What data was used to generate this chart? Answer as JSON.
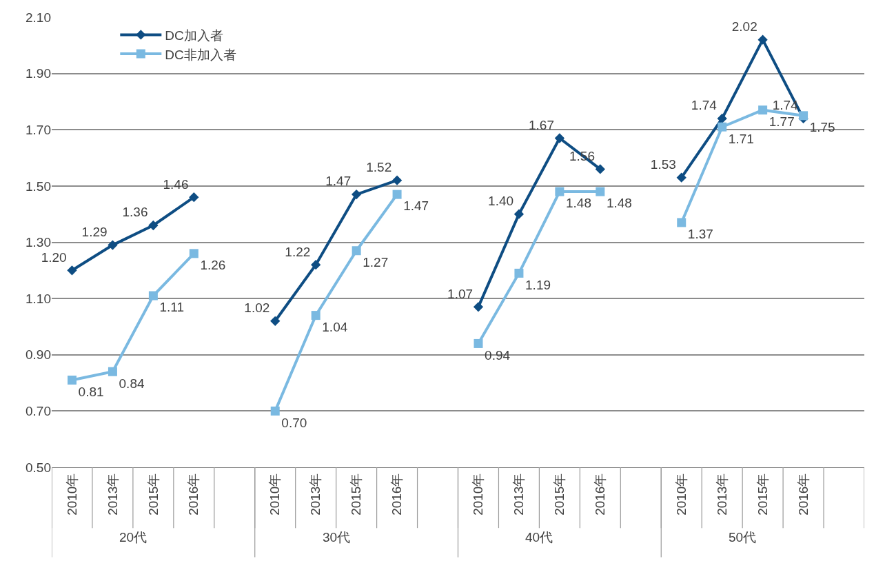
{
  "chart_data": {
    "type": "line",
    "categories": [
      "2010年",
      "2013年",
      "2015年",
      "2016年",
      null,
      "2010年",
      "2013年",
      "2015年",
      "2016年",
      null,
      "2010年",
      "2013年",
      "2015年",
      "2016年",
      null,
      "2010年",
      "2013年",
      "2015年",
      "2016年",
      null
    ],
    "series": [
      {
        "name": "DC加入者",
        "color": "#0e4d83",
        "marker": "diamond",
        "values": [
          1.2,
          1.29,
          1.36,
          1.46,
          null,
          1.02,
          1.22,
          1.47,
          1.52,
          null,
          1.07,
          1.4,
          1.67,
          1.56,
          null,
          1.53,
          1.74,
          2.02,
          1.74,
          null
        ],
        "value_labels": [
          "1.20",
          "1.29",
          "1.36",
          "1.46",
          null,
          "1.02",
          "1.22",
          "1.47",
          "1.52",
          null,
          "1.07",
          "1.40",
          "1.67",
          "1.56",
          null,
          "1.53",
          "1.74",
          "2.02",
          "1.74",
          null
        ]
      },
      {
        "name": "DC非加入者",
        "color": "#7ab9e1",
        "marker": "square",
        "values": [
          0.81,
          0.84,
          1.11,
          1.26,
          null,
          0.7,
          1.04,
          1.27,
          1.47,
          null,
          0.94,
          1.19,
          1.48,
          1.48,
          null,
          1.37,
          1.71,
          1.77,
          1.75,
          null
        ],
        "value_labels": [
          "0.81",
          "0.84",
          "1.11",
          "1.26",
          null,
          "0.70",
          "1.04",
          "1.27",
          "1.47",
          null,
          "0.94",
          "1.19",
          "1.48",
          "1.48",
          null,
          "1.37",
          "1.71",
          "1.77",
          "1.75",
          null
        ]
      }
    ],
    "annotations": [
      "20代",
      "30代",
      "40代",
      "50代"
    ],
    "ylim": [
      0.5,
      2.1
    ],
    "yticks": [
      {
        "value": 0.5,
        "label": "0.50"
      },
      {
        "value": 0.7,
        "label": "0.70"
      },
      {
        "value": 0.9,
        "label": "0.90"
      },
      {
        "value": 1.1,
        "label": "1.10"
      },
      {
        "value": 1.3,
        "label": "1.30"
      },
      {
        "value": 1.5,
        "label": "1.50"
      },
      {
        "value": 1.7,
        "label": "1.70"
      },
      {
        "value": 1.9,
        "label": "1.90"
      },
      {
        "value": 2.1,
        "label": "2.10"
      }
    ],
    "grid": "y",
    "legend": "top left",
    "line_style": "solid"
  }
}
